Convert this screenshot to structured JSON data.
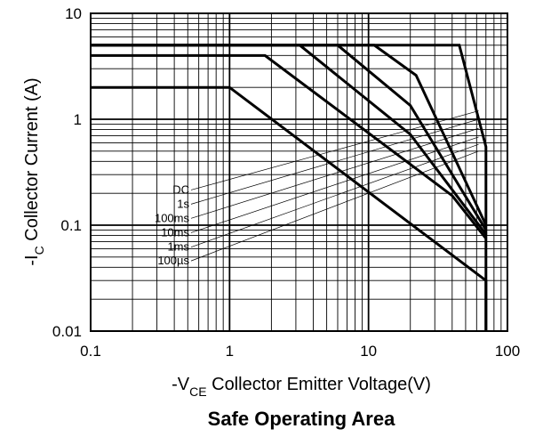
{
  "chart_data": {
    "type": "line",
    "title": "Safe Operating Area",
    "xlabel": {
      "prefix": "-V",
      "subscript": "CE",
      "suffix": " Collector Emitter Voltage(V)"
    },
    "ylabel": {
      "prefix": "-I",
      "subscript": "C",
      "suffix": " Collector Current (A)"
    },
    "xscale": "log",
    "yscale": "log",
    "xlim": [
      0.1,
      100
    ],
    "ylim": [
      0.01,
      10
    ],
    "xticks": [
      {
        "value": 0.1,
        "label": "0.1"
      },
      {
        "value": 1,
        "label": "1"
      },
      {
        "value": 10,
        "label": "10"
      },
      {
        "value": 100,
        "label": "100"
      }
    ],
    "yticks": [
      {
        "value": 10,
        "label": "10"
      },
      {
        "value": 1,
        "label": "1"
      },
      {
        "value": 0.1,
        "label": "0.1"
      },
      {
        "value": 0.01,
        "label": "0.01"
      }
    ],
    "grid": true,
    "series": [
      {
        "name": "DC",
        "points": [
          [
            0.1,
            2
          ],
          [
            1.0,
            2
          ],
          [
            70,
            0.03
          ],
          [
            70,
            0.01
          ]
        ]
      },
      {
        "name": "1s",
        "points": [
          [
            0.1,
            4
          ],
          [
            1.8,
            4
          ],
          [
            40,
            0.19
          ],
          [
            70,
            0.075
          ]
        ]
      },
      {
        "name": "100ms",
        "points": [
          [
            0.1,
            5
          ],
          [
            3.2,
            5
          ],
          [
            20,
            0.72
          ],
          [
            70,
            0.082
          ]
        ]
      },
      {
        "name": "10ms",
        "points": [
          [
            0.1,
            5
          ],
          [
            6,
            5
          ],
          [
            20,
            1.35
          ],
          [
            70,
            0.09
          ]
        ]
      },
      {
        "name": "1ms",
        "points": [
          [
            0.1,
            5
          ],
          [
            11,
            5
          ],
          [
            22,
            2.6
          ],
          [
            70,
            0.1
          ]
        ]
      },
      {
        "name": "100µs",
        "points": [
          [
            0.1,
            5
          ],
          [
            45,
            5
          ],
          [
            70,
            0.55
          ],
          [
            70,
            0.01
          ]
        ]
      }
    ],
    "label_anchors": [
      {
        "label_y": 0.215,
        "target": [
          62,
          1.2
        ]
      },
      {
        "label_y": 0.158,
        "target": [
          62,
          1.0
        ]
      },
      {
        "label_y": 0.116,
        "target": [
          62,
          0.82
        ]
      },
      {
        "label_y": 0.085,
        "target": [
          62,
          0.68
        ]
      },
      {
        "label_y": 0.062,
        "target": [
          62,
          0.58
        ]
      },
      {
        "label_y": 0.046,
        "target": [
          62,
          0.5
        ]
      }
    ]
  }
}
